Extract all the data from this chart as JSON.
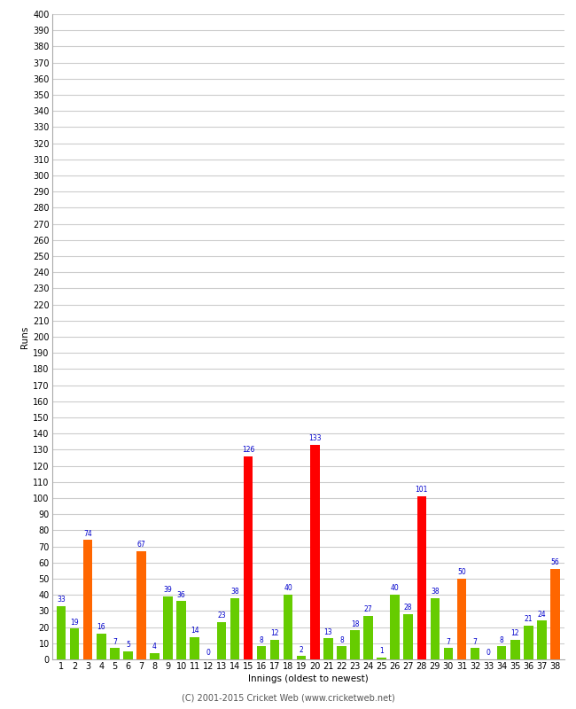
{
  "xlabel": "Innings (oldest to newest)",
  "ylabel": "Runs",
  "innings": [
    1,
    2,
    3,
    4,
    5,
    6,
    7,
    8,
    9,
    10,
    11,
    12,
    13,
    14,
    15,
    16,
    17,
    18,
    19,
    20,
    21,
    22,
    23,
    24,
    25,
    26,
    27,
    28,
    29,
    30,
    31,
    32,
    33,
    34,
    35,
    36,
    37,
    38
  ],
  "values": [
    33,
    19,
    74,
    16,
    7,
    5,
    67,
    4,
    39,
    36,
    14,
    0,
    23,
    38,
    126,
    8,
    12,
    40,
    2,
    133,
    13,
    8,
    18,
    27,
    1,
    40,
    28,
    101,
    38,
    7,
    50,
    7,
    0,
    8,
    12,
    21,
    24,
    56
  ],
  "colors": [
    "#66cc00",
    "#66cc00",
    "#ff6600",
    "#66cc00",
    "#66cc00",
    "#66cc00",
    "#ff6600",
    "#66cc00",
    "#66cc00",
    "#66cc00",
    "#66cc00",
    "#66cc00",
    "#66cc00",
    "#66cc00",
    "#ff0000",
    "#66cc00",
    "#66cc00",
    "#66cc00",
    "#66cc00",
    "#ff0000",
    "#66cc00",
    "#66cc00",
    "#66cc00",
    "#66cc00",
    "#66cc00",
    "#66cc00",
    "#66cc00",
    "#ff0000",
    "#66cc00",
    "#66cc00",
    "#ff6600",
    "#66cc00",
    "#66cc00",
    "#66cc00",
    "#66cc00",
    "#66cc00",
    "#66cc00",
    "#ff6600"
  ],
  "ylim": [
    0,
    400
  ],
  "yticks": [
    0,
    10,
    20,
    30,
    40,
    50,
    60,
    70,
    80,
    90,
    100,
    110,
    120,
    130,
    140,
    150,
    160,
    170,
    180,
    190,
    200,
    210,
    220,
    230,
    240,
    250,
    260,
    270,
    280,
    290,
    300,
    310,
    320,
    330,
    340,
    350,
    360,
    370,
    380,
    390,
    400
  ],
  "background_color": "#ffffff",
  "grid_color": "#cccccc",
  "label_color": "#0000cc",
  "label_fontsize": 5.5,
  "axis_fontsize": 7,
  "xlabel_fontsize": 7.5,
  "ylabel_fontsize": 7.5,
  "copyright": "(C) 2001-2015 Cricket Web (www.cricketweb.net)"
}
